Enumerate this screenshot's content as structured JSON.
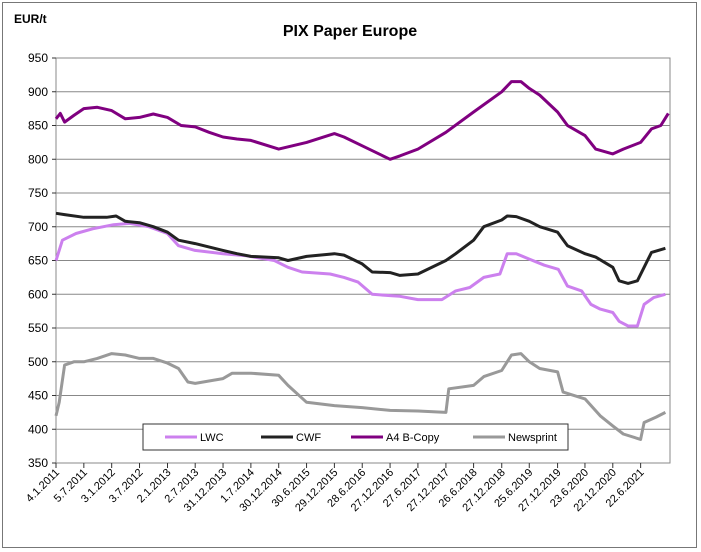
{
  "chart_data": {
    "type": "line",
    "title": "PIX Paper Europe",
    "ylabel": "EUR/t",
    "ylim": [
      350,
      950
    ],
    "yticks": [
      350,
      400,
      450,
      500,
      550,
      600,
      650,
      700,
      750,
      800,
      850,
      900,
      950
    ],
    "xlim": [
      "2011-01-04",
      "2021-12-31"
    ],
    "xtick_labels": [
      "4.1.2011",
      "5.7.2011",
      "3.1.2012",
      "3.7.2012",
      "2.1.2013",
      "2.7.2013",
      "31.12.2013",
      "1.7.2014",
      "30.12.2014",
      "30.6.2015",
      "29.12.2015",
      "28.6.2016",
      "27.12.2016",
      "27.6.2017",
      "27.12.2017",
      "26.6.2018",
      "27.12.2018",
      "25.6.2019",
      "27.12.2019",
      "23.6.2020",
      "22.12.2020",
      "22.6.2021"
    ],
    "xtick_dates": [
      "2011-01-04",
      "2011-07-05",
      "2012-01-03",
      "2012-07-03",
      "2013-01-02",
      "2013-07-02",
      "2013-12-31",
      "2014-07-01",
      "2014-12-30",
      "2015-06-30",
      "2015-12-29",
      "2016-06-28",
      "2016-12-27",
      "2017-06-27",
      "2017-12-27",
      "2018-06-26",
      "2018-12-27",
      "2019-06-25",
      "2019-12-27",
      "2020-06-23",
      "2020-12-22",
      "2021-06-22"
    ],
    "grid": "horizontal",
    "legend_position": "bottom",
    "series": [
      {
        "name": "LWC",
        "color": "#cc80ee",
        "points": [
          [
            "2011-01-04",
            650
          ],
          [
            "2011-02-15",
            680
          ],
          [
            "2011-05-15",
            690
          ],
          [
            "2011-09-01",
            697
          ],
          [
            "2012-01-15",
            703
          ],
          [
            "2012-05-01",
            705
          ],
          [
            "2012-09-01",
            700
          ],
          [
            "2013-01-01",
            690
          ],
          [
            "2013-03-15",
            672
          ],
          [
            "2013-07-01",
            665
          ],
          [
            "2013-12-31",
            660
          ],
          [
            "2014-06-01",
            657
          ],
          [
            "2014-12-01",
            650
          ],
          [
            "2015-03-01",
            640
          ],
          [
            "2015-06-01",
            633
          ],
          [
            "2015-12-01",
            630
          ],
          [
            "2016-03-01",
            625
          ],
          [
            "2016-06-01",
            618
          ],
          [
            "2016-09-01",
            600
          ],
          [
            "2016-12-27",
            598
          ],
          [
            "2017-03-01",
            597
          ],
          [
            "2017-06-27",
            592
          ],
          [
            "2017-12-01",
            592
          ],
          [
            "2018-03-01",
            605
          ],
          [
            "2018-06-01",
            610
          ],
          [
            "2018-09-01",
            625
          ],
          [
            "2018-12-15",
            630
          ],
          [
            "2019-02-01",
            660
          ],
          [
            "2019-04-01",
            660
          ],
          [
            "2019-06-25",
            652
          ],
          [
            "2019-10-01",
            643
          ],
          [
            "2020-01-01",
            637
          ],
          [
            "2020-03-01",
            612
          ],
          [
            "2020-06-01",
            605
          ],
          [
            "2020-08-01",
            585
          ],
          [
            "2020-10-01",
            578
          ],
          [
            "2020-12-22",
            573
          ],
          [
            "2021-02-01",
            560
          ],
          [
            "2021-04-01",
            553
          ],
          [
            "2021-06-01",
            553
          ],
          [
            "2021-07-15",
            585
          ],
          [
            "2021-09-15",
            595
          ],
          [
            "2021-12-01",
            600
          ]
        ]
      },
      {
        "name": "CWF",
        "color": "#222222",
        "points": [
          [
            "2011-01-04",
            720
          ],
          [
            "2011-03-01",
            718
          ],
          [
            "2011-07-05",
            714
          ],
          [
            "2011-12-01",
            714
          ],
          [
            "2012-02-01",
            716
          ],
          [
            "2012-04-01",
            708
          ],
          [
            "2012-07-03",
            706
          ],
          [
            "2012-10-01",
            700
          ],
          [
            "2013-01-02",
            692
          ],
          [
            "2013-03-15",
            680
          ],
          [
            "2013-07-02",
            675
          ],
          [
            "2013-12-31",
            665
          ],
          [
            "2014-04-01",
            660
          ],
          [
            "2014-07-01",
            656
          ],
          [
            "2014-12-30",
            654
          ],
          [
            "2015-03-01",
            650
          ],
          [
            "2015-06-30",
            656
          ],
          [
            "2015-12-29",
            660
          ],
          [
            "2016-03-01",
            658
          ],
          [
            "2016-06-28",
            645
          ],
          [
            "2016-09-01",
            633
          ],
          [
            "2016-12-27",
            632
          ],
          [
            "2017-03-01",
            628
          ],
          [
            "2017-06-27",
            630
          ],
          [
            "2017-12-27",
            650
          ],
          [
            "2018-03-01",
            660
          ],
          [
            "2018-06-26",
            680
          ],
          [
            "2018-09-01",
            700
          ],
          [
            "2018-12-27",
            710
          ],
          [
            "2019-02-01",
            716
          ],
          [
            "2019-04-01",
            715
          ],
          [
            "2019-06-25",
            708
          ],
          [
            "2019-09-01",
            700
          ],
          [
            "2019-12-27",
            692
          ],
          [
            "2020-03-01",
            672
          ],
          [
            "2020-06-23",
            660
          ],
          [
            "2020-09-01",
            655
          ],
          [
            "2020-12-22",
            640
          ],
          [
            "2021-02-01",
            620
          ],
          [
            "2021-04-01",
            616
          ],
          [
            "2021-06-01",
            620
          ],
          [
            "2021-07-15",
            640
          ],
          [
            "2021-09-01",
            662
          ],
          [
            "2021-12-01",
            668
          ]
        ]
      },
      {
        "name": "A4 B-Copy",
        "color": "#800080",
        "points": [
          [
            "2011-01-04",
            860
          ],
          [
            "2011-02-01",
            868
          ],
          [
            "2011-03-01",
            855
          ],
          [
            "2011-05-01",
            865
          ],
          [
            "2011-07-05",
            875
          ],
          [
            "2011-10-01",
            877
          ],
          [
            "2012-01-03",
            872
          ],
          [
            "2012-04-01",
            860
          ],
          [
            "2012-07-03",
            862
          ],
          [
            "2012-10-01",
            867
          ],
          [
            "2013-01-02",
            862
          ],
          [
            "2013-04-01",
            850
          ],
          [
            "2013-07-02",
            848
          ],
          [
            "2013-10-01",
            840
          ],
          [
            "2013-12-31",
            833
          ],
          [
            "2014-04-01",
            830
          ],
          [
            "2014-07-01",
            828
          ],
          [
            "2014-12-30",
            815
          ],
          [
            "2015-06-30",
            825
          ],
          [
            "2015-12-29",
            838
          ],
          [
            "2016-03-01",
            833
          ],
          [
            "2016-06-28",
            820
          ],
          [
            "2016-12-27",
            800
          ],
          [
            "2017-03-01",
            805
          ],
          [
            "2017-06-27",
            815
          ],
          [
            "2017-12-27",
            840
          ],
          [
            "2018-06-26",
            870
          ],
          [
            "2018-12-27",
            900
          ],
          [
            "2019-03-01",
            915
          ],
          [
            "2019-05-01",
            915
          ],
          [
            "2019-06-25",
            905
          ],
          [
            "2019-09-01",
            895
          ],
          [
            "2019-12-27",
            870
          ],
          [
            "2020-03-01",
            850
          ],
          [
            "2020-06-23",
            835
          ],
          [
            "2020-09-01",
            815
          ],
          [
            "2020-12-22",
            808
          ],
          [
            "2021-03-01",
            815
          ],
          [
            "2021-06-22",
            825
          ],
          [
            "2021-09-01",
            845
          ],
          [
            "2021-11-01",
            850
          ],
          [
            "2021-12-20",
            868
          ]
        ]
      },
      {
        "name": "Newsprint",
        "color": "#999999",
        "points": [
          [
            "2011-01-04",
            420
          ],
          [
            "2011-01-25",
            440
          ],
          [
            "2011-03-01",
            495
          ],
          [
            "2011-05-01",
            500
          ],
          [
            "2011-07-05",
            500
          ],
          [
            "2011-10-01",
            505
          ],
          [
            "2012-01-03",
            512
          ],
          [
            "2012-04-01",
            510
          ],
          [
            "2012-07-03",
            505
          ],
          [
            "2012-10-01",
            505
          ],
          [
            "2013-01-02",
            498
          ],
          [
            "2013-03-15",
            490
          ],
          [
            "2013-05-15",
            470
          ],
          [
            "2013-07-02",
            468
          ],
          [
            "2013-12-31",
            475
          ],
          [
            "2014-03-01",
            483
          ],
          [
            "2014-07-01",
            483
          ],
          [
            "2014-12-30",
            480
          ],
          [
            "2015-03-01",
            465
          ],
          [
            "2015-06-30",
            440
          ],
          [
            "2015-12-29",
            435
          ],
          [
            "2016-06-28",
            432
          ],
          [
            "2016-12-27",
            428
          ],
          [
            "2017-06-27",
            427
          ],
          [
            "2017-12-27",
            425
          ],
          [
            "2018-01-15",
            460
          ],
          [
            "2018-06-26",
            465
          ],
          [
            "2018-09-01",
            478
          ],
          [
            "2018-12-27",
            487
          ],
          [
            "2019-03-01",
            510
          ],
          [
            "2019-05-01",
            512
          ],
          [
            "2019-06-25",
            500
          ],
          [
            "2019-09-01",
            490
          ],
          [
            "2019-12-27",
            485
          ],
          [
            "2020-02-01",
            455
          ],
          [
            "2020-06-23",
            445
          ],
          [
            "2020-10-01",
            420
          ],
          [
            "2020-12-22",
            405
          ],
          [
            "2021-03-01",
            393
          ],
          [
            "2021-06-22",
            385
          ],
          [
            "2021-07-15",
            410
          ],
          [
            "2021-10-01",
            418
          ],
          [
            "2021-12-01",
            425
          ]
        ]
      }
    ]
  }
}
